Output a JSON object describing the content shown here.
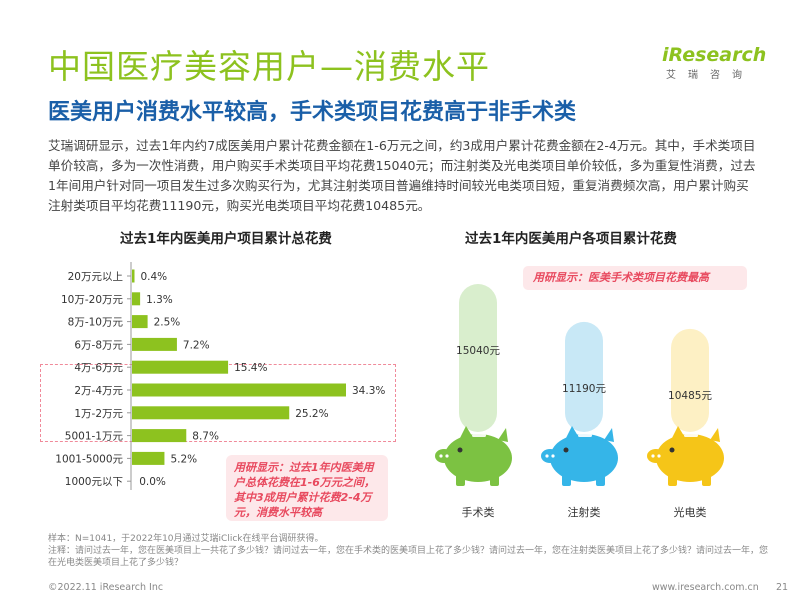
{
  "header": {
    "title": "中国医疗美容用户—消费水平",
    "subtitle": "医美用户消费水平较高，手术类项目花费高于非手术类"
  },
  "logo": {
    "word": "iResearch",
    "sub": "艾瑞咨询"
  },
  "description": "艾瑞调研显示，过去1年内约7成医美用户累计花费金额在1-6万元之间，约3成用户累计花费金额在2-4万元。其中，手术类项目单价较高，多为一次性消费，用户购买手术类项目平均花费15040元；而注射类及光电类项目单价较低，多为重复性消费，过去1年间用户针对同一项目发生过多次购买行为，尤其注射类项目普遍维持时间较光电类项目短，重复消费频次高，用户累计购买注射类项目平均花费11190元，购买光电类项目平均花费10485元。",
  "left_callout": "用研显示：过去1年内医美用户总体花费在1-6万元之间，其中3成用户累计花费2-4万元，消费水平较高",
  "right_callout": "用研显示：医美手术类项目花费最高",
  "footnote": "样本：N=1041，于2022年10月通过艾瑞iClick在线平台调研获得。\n注释：请问过去一年，您在医美项目上一共花了多少钱？请问过去一年，您在手术类的医美项目上花了多少钱？请问过去一年，您在注射类医美项目上花了多少钱？请问过去一年，您在光电类医美项目上花了多少钱？",
  "footer": {
    "copyright": "©2022.11 iResearch Inc",
    "website": "www.iresearch.com.cn",
    "page": "21"
  },
  "colors": {
    "title_green": "#8dc21f",
    "subtitle_blue": "#1a5fa8",
    "bar_green": "#8dc21f",
    "highlight_pink": "#f08a9a",
    "surgery_green": "#7cc242",
    "injection_blue": "#35b5e8",
    "optical_yellow": "#f5c518"
  },
  "chart_data": [
    {
      "type": "bar",
      "orientation": "horizontal",
      "title": "过去1年内医美用户项目累计总花费",
      "categories": [
        "20万元以上",
        "10万-20万元",
        "8万-10万元",
        "6万-8万元",
        "4万-6万元",
        "2万-4万元",
        "1万-2万元",
        "5001-1万元",
        "1001-5000元",
        "1000元以下"
      ],
      "values": [
        0.4,
        1.3,
        2.5,
        7.2,
        15.4,
        34.3,
        25.2,
        8.7,
        5.2,
        0.0
      ],
      "value_labels": [
        "0.4%",
        "1.3%",
        "2.5%",
        "7.2%",
        "15.4%",
        "34.3%",
        "25.2%",
        "8.7%",
        "5.2%",
        "0.0%"
      ],
      "unit": "%",
      "highlighted": [
        "4万-6万元",
        "2万-4万元",
        "1万-2万元"
      ]
    },
    {
      "type": "bar",
      "title": "过去1年内医美用户各项目累计花费",
      "categories": [
        "手术类",
        "注射类",
        "光电类"
      ],
      "values": [
        15040,
        11190,
        10485
      ],
      "value_labels": [
        "15040元",
        "11190元",
        "10485元"
      ],
      "unit": "元",
      "icon": "piggy-bank"
    }
  ]
}
